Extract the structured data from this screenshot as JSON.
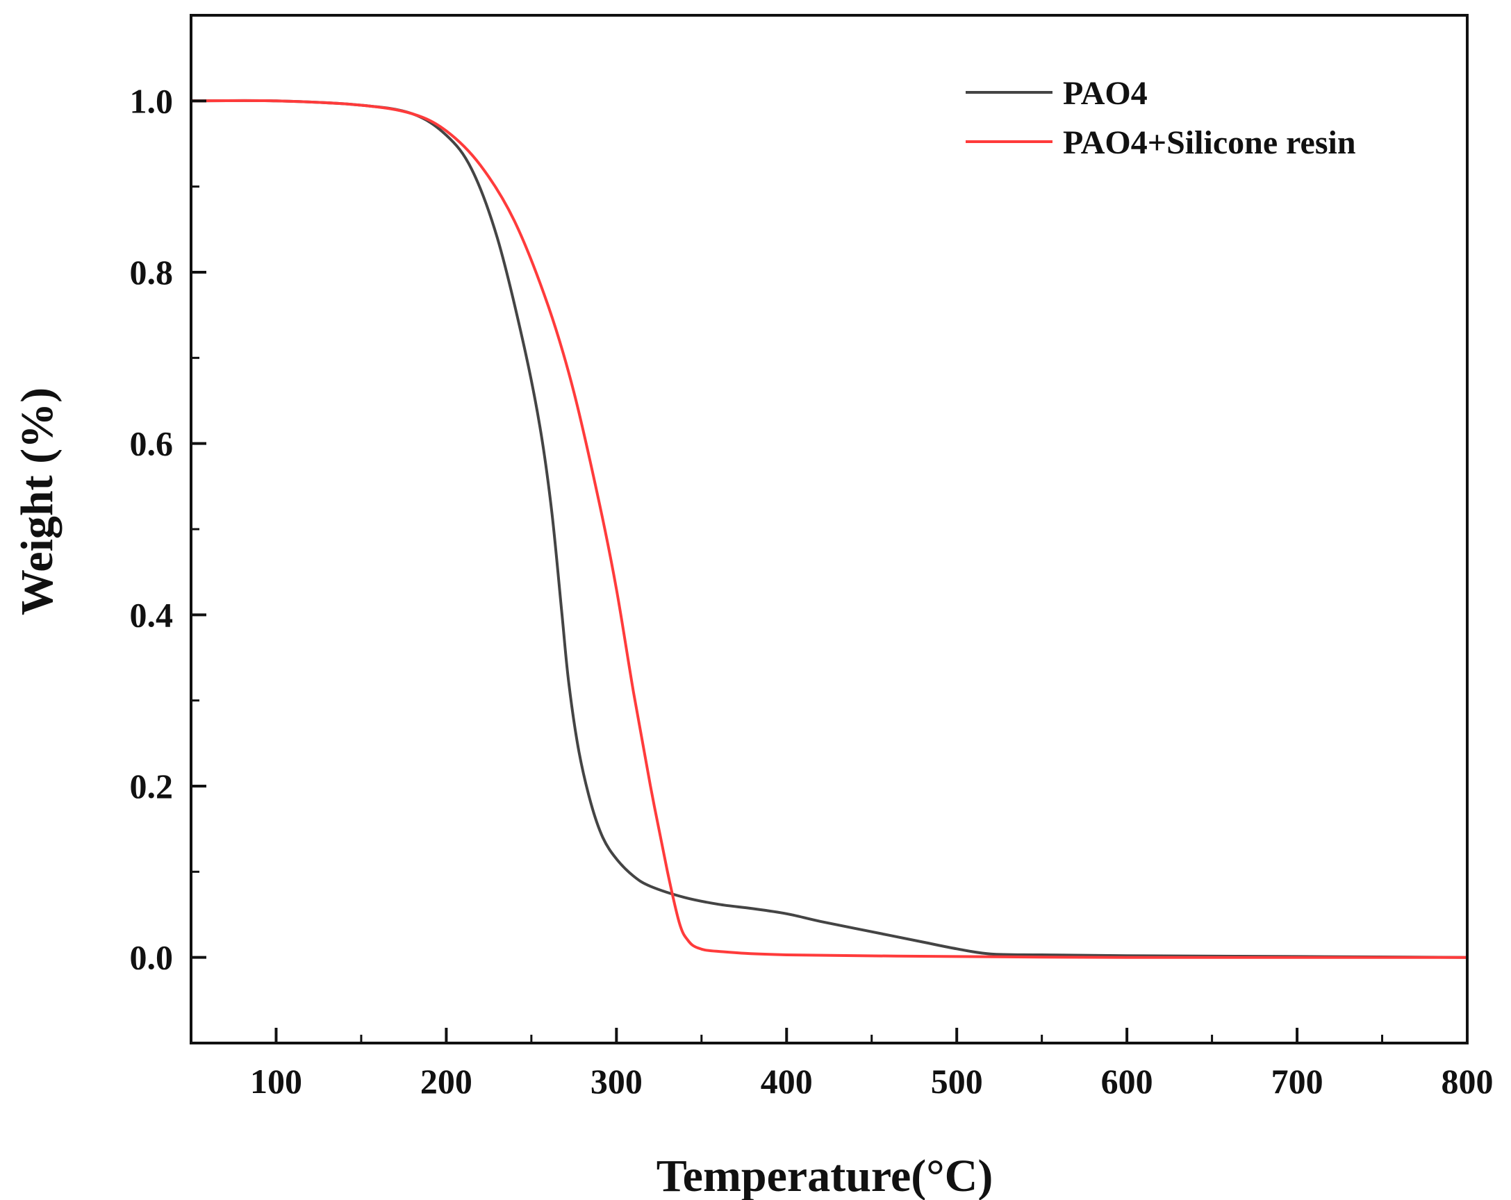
{
  "chart_data": {
    "type": "line",
    "title": "",
    "xlabel": "Temperature(°C)",
    "ylabel": "Weight (%)",
    "xlim": [
      50,
      800
    ],
    "ylim": [
      -0.1,
      1.1
    ],
    "xticks": [
      100,
      200,
      300,
      400,
      500,
      600,
      700,
      800
    ],
    "yticks": [
      0.0,
      0.2,
      0.4,
      0.6,
      0.8,
      1.0
    ],
    "xtick_labels": [
      "100",
      "200",
      "300",
      "400",
      "500",
      "600",
      "700",
      "800"
    ],
    "ytick_labels": [
      "0.0",
      "0.2",
      "0.4",
      "0.6",
      "0.8",
      "1.0"
    ],
    "grid": false,
    "legend_position": "top-right",
    "series": [
      {
        "name": "PAO4",
        "color": "#444444",
        "x": [
          50,
          100,
          150,
          180,
          200,
          215,
          230,
          245,
          255,
          262,
          268,
          272,
          278,
          285,
          292,
          300,
          310,
          320,
          340,
          360,
          380,
          400,
          420,
          450,
          480,
          500,
          520,
          550,
          600,
          700,
          800
        ],
        "y": [
          1.0,
          1.0,
          0.995,
          0.985,
          0.96,
          0.92,
          0.84,
          0.72,
          0.62,
          0.52,
          0.4,
          0.32,
          0.24,
          0.18,
          0.14,
          0.115,
          0.095,
          0.083,
          0.07,
          0.062,
          0.057,
          0.051,
          0.042,
          0.03,
          0.018,
          0.01,
          0.004,
          0.003,
          0.002,
          0.001,
          0.0
        ]
      },
      {
        "name": "PAO4+Silicone resin",
        "color": "#ff3b3b",
        "x": [
          50,
          100,
          150,
          180,
          200,
          220,
          240,
          260,
          275,
          290,
          300,
          310,
          320,
          330,
          337,
          342,
          348,
          360,
          400,
          500,
          600,
          700,
          800
        ],
        "y": [
          1.0,
          1.0,
          0.995,
          0.985,
          0.965,
          0.925,
          0.86,
          0.76,
          0.66,
          0.53,
          0.43,
          0.31,
          0.2,
          0.1,
          0.04,
          0.02,
          0.011,
          0.007,
          0.003,
          0.001,
          0.0,
          0.0,
          0.0
        ]
      }
    ]
  }
}
